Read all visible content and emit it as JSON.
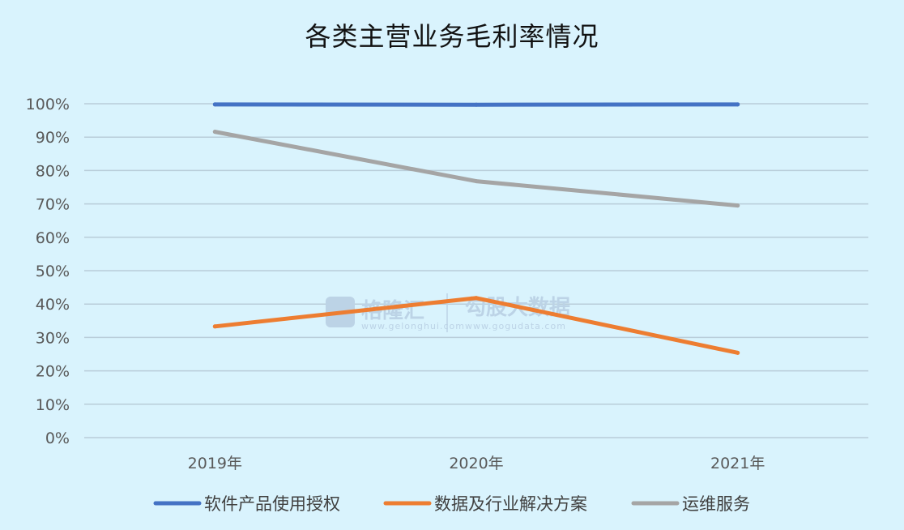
{
  "chart_data": {
    "type": "line",
    "title": "各类主营业务毛利率情况",
    "categories": [
      "2019年",
      "2020年",
      "2021年"
    ],
    "y_ticks": [
      "0%",
      "10%",
      "20%",
      "30%",
      "40%",
      "50%",
      "60%",
      "70%",
      "80%",
      "90%",
      "100%"
    ],
    "ylim": [
      0,
      100
    ],
    "grid": true,
    "legend_position": "bottom",
    "series": [
      {
        "name": "软件产品使用授权",
        "values": [
          99.8,
          99.7,
          99.8
        ],
        "color": "#4472c4"
      },
      {
        "name": "数据及行业解决方案",
        "values": [
          33.3,
          41.8,
          25.4
        ],
        "color": "#ed7d31"
      },
      {
        "name": "运维服务",
        "values": [
          91.6,
          76.8,
          69.5
        ],
        "color": "#a5a5a5"
      }
    ]
  },
  "watermark": {
    "brand": "格隆汇",
    "brand_url": "www.gelonghui.com",
    "partner": "勾股大数据",
    "partner_url": "www.gogudata.com"
  }
}
